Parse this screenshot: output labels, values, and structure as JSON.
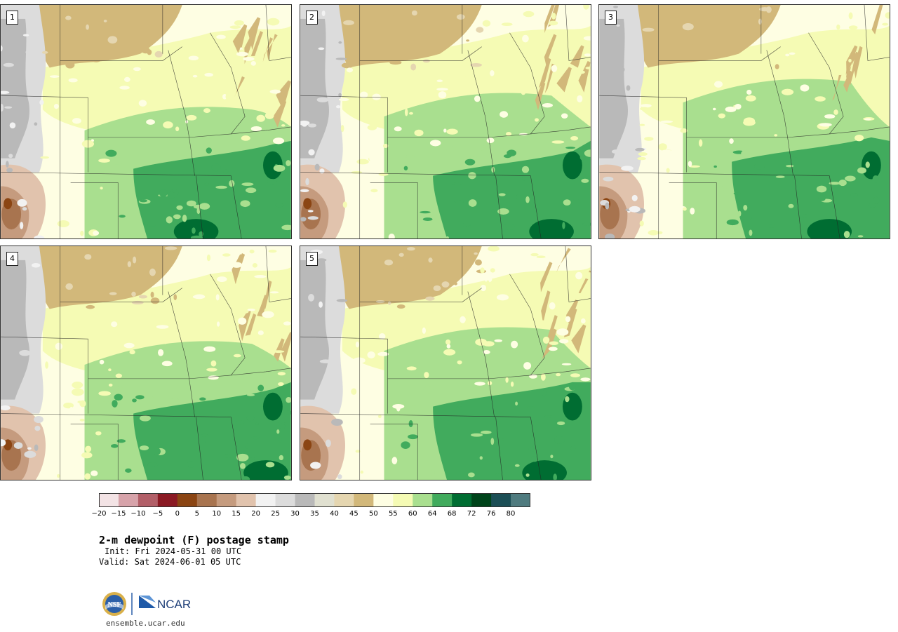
{
  "panels": [
    {
      "label": "1"
    },
    {
      "label": "2"
    },
    {
      "label": "3"
    },
    {
      "label": "4"
    },
    {
      "label": "5"
    }
  ],
  "colorbar": {
    "colors": [
      "#f3e3e5",
      "#d7a3aa",
      "#b25f68",
      "#8b1a24",
      "#8b4513",
      "#a8744f",
      "#c59b7e",
      "#e1c3ad",
      "#f2f2f2",
      "#dcdcdc",
      "#b9b9b9",
      "#e0e0d0",
      "#e5d6b0",
      "#d2b87a",
      "#fefee3",
      "#f5fbb4",
      "#a9df8f",
      "#41ab5d",
      "#006d32",
      "#00441b",
      "#1c4f56",
      "#4f7b7f"
    ],
    "tick_labels": [
      "−20",
      "−15",
      "−10",
      "−5",
      "0",
      "5",
      "10",
      "15",
      "20",
      "25",
      "30",
      "35",
      "40",
      "45",
      "50",
      "55",
      "60",
      "64",
      "68",
      "72",
      "76",
      "80"
    ]
  },
  "title": "2-m dewpoint (F) postage stamp",
  "init": "Init: Fri 2024-05-31 00 UTC",
  "valid": "Valid: Sat 2024-06-01 05 UTC",
  "logos": {
    "left": "NSF",
    "right": "NCAR"
  },
  "url": "ensemble.ucar.edu"
}
